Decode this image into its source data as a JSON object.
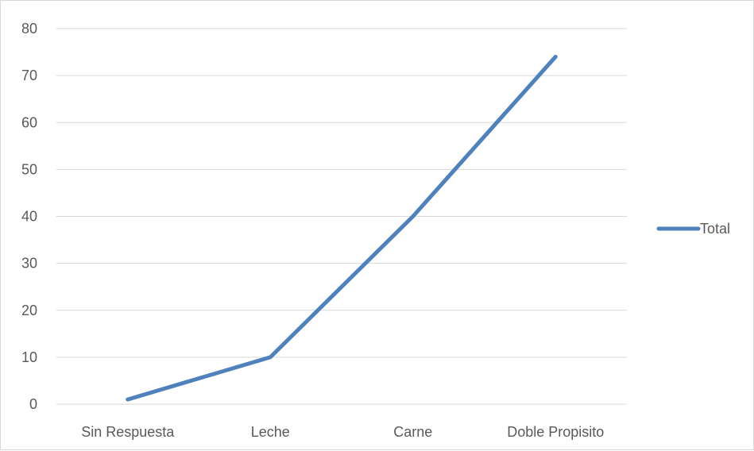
{
  "chart_data": {
    "type": "line",
    "title": "",
    "xlabel": "",
    "ylabel": "",
    "categories": [
      "Sin Respuesta",
      "Leche",
      "Carne",
      "Doble Propisito"
    ],
    "series": [
      {
        "name": "Total",
        "values": [
          1,
          10,
          40,
          74
        ],
        "color": "#4f81bd"
      }
    ],
    "ylim": [
      0,
      80
    ],
    "y_ticks": [
      "0",
      "10",
      "20",
      "30",
      "40",
      "50",
      "60",
      "70",
      "80"
    ],
    "grid": true,
    "legend": "right"
  }
}
